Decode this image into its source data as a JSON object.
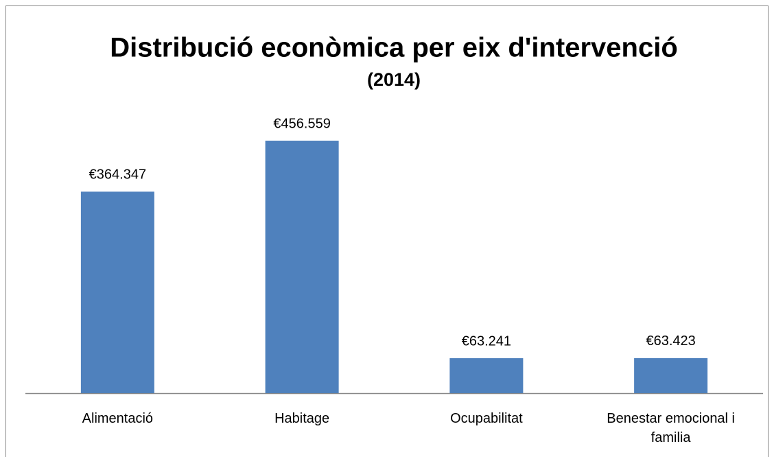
{
  "chart_data": {
    "type": "bar",
    "title": "Distribució econòmica per eix d'intervenció",
    "subtitle": "(2014)",
    "categories": [
      "Alimentació",
      "Habitage",
      "Ocupabilitat",
      "Benestar emocional i familia"
    ],
    "values": [
      364347,
      456559,
      63241,
      63423
    ],
    "value_labels": [
      "€364.347",
      "€456.559",
      "€63.241",
      "€63.423"
    ],
    "color": "#4f81bd"
  }
}
